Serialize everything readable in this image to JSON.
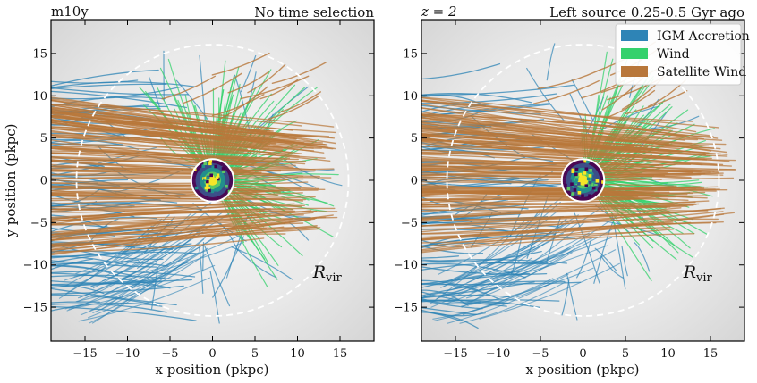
{
  "colors": {
    "igm": "#2e84b6",
    "wind": "#34d16c",
    "satellite": "#b8773a",
    "background": "#e3e3e3"
  },
  "chart_data": [
    {
      "type": "scatter",
      "panel": "left",
      "title_left": "m10y",
      "title_right": "No time selection",
      "xlabel": "x position (pkpc)",
      "ylabel": "y position (pkpc)",
      "xlim": [
        -19,
        19
      ],
      "ylim": [
        -19,
        19
      ],
      "xticks": [
        -15,
        -10,
        -5,
        0,
        5,
        10,
        15
      ],
      "yticks": [
        -15,
        -10,
        -5,
        0,
        5,
        10,
        15
      ],
      "rvir_radius": 16,
      "galaxy_circle_radius": 2.5,
      "annotation": {
        "base": "R",
        "sub": "vir",
        "x": 13.5,
        "y": -11.5
      },
      "legend": null
    },
    {
      "type": "scatter",
      "panel": "right",
      "title_left": "z = 2",
      "title_right": "Left source 0.25-0.5 Gyr ago",
      "xlabel": "x position (pkpc)",
      "ylabel": "",
      "xlim": [
        -19,
        19
      ],
      "ylim": [
        -19,
        19
      ],
      "xticks": [
        -15,
        -10,
        -5,
        0,
        5,
        10,
        15
      ],
      "yticks": [
        -15,
        -10,
        -5,
        0,
        5,
        10,
        15
      ],
      "rvir_radius": 16,
      "galaxy_circle_radius": 2.5,
      "annotation": {
        "base": "R",
        "sub": "vir",
        "x": 13.5,
        "y": -11.5
      },
      "legend": {
        "placement": "top-right",
        "entries": [
          {
            "label": "IGM Accretion",
            "color": "#2e84b6"
          },
          {
            "label": "Wind",
            "color": "#34d16c"
          },
          {
            "label": "Satellite Wind",
            "color": "#b8773a"
          }
        ]
      }
    }
  ]
}
